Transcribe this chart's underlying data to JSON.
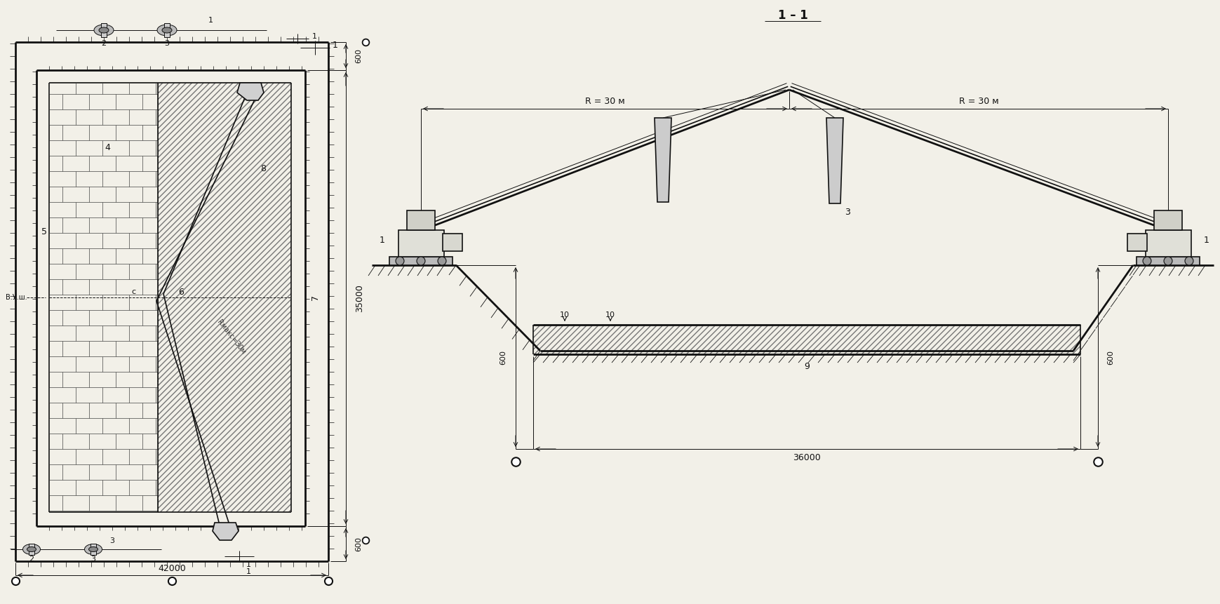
{
  "bg_color": "#f2f0e8",
  "line_color": "#111111",
  "title_11": "1 – 1",
  "label_42000": "42000",
  "label_36000": "36000",
  "label_35000": "35000",
  "label_600": "600",
  "label_R30_left": "R = 30 м",
  "label_R30_right": "R = 30 м",
  "label_VUsh": "В.У.ш.",
  "label_4": "4",
  "label_5": "5",
  "label_6": "6",
  "label_7": "7",
  "label_8": "8",
  "label_9": "9",
  "label_10a": "10",
  "label_10b": "10",
  "label_1": "1",
  "label_2": "2",
  "label_3": "3",
  "label_c": "с",
  "label_rmax": "Rмакс=30м",
  "font_size_main": 9,
  "font_size_small": 8,
  "font_size_large": 12
}
